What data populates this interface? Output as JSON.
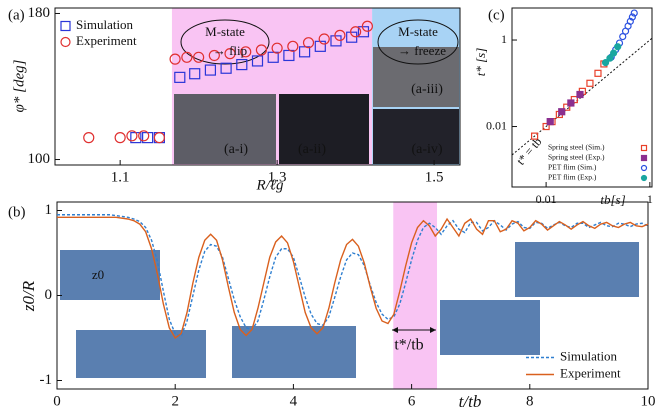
{
  "chart_data": [
    {
      "type": "scatter",
      "panel_label": "(a)",
      "x_label": "R/ℓg",
      "y_label": "φ* [deg]",
      "xlim": [
        1.017,
        1.533
      ],
      "ylim": [
        97,
        183
      ],
      "xticks": [
        1.1,
        1.3,
        1.5
      ],
      "yticks": [
        100,
        180
      ],
      "legend": "upper left",
      "spans": [
        {
          "from": 1.166,
          "to": 1.421,
          "color": "#f9c4f3"
        },
        {
          "from": 1.421,
          "to": 1.533,
          "color": "#a8d3f5"
        }
      ],
      "annotations": [
        "M-state",
        "→ flip",
        "M-state",
        "→ freeze",
        "(a-i)",
        "(a-ii)",
        "(a-iii)",
        "(a-iv)"
      ],
      "series": [
        {
          "name": "Simulation",
          "color": "#2a36d8",
          "marker": "square",
          "filled": false,
          "x": [
            1.12,
            1.135,
            1.15,
            1.176,
            1.195,
            1.215,
            1.235,
            1.255,
            1.275,
            1.295,
            1.315,
            1.335,
            1.355,
            1.375,
            1.395,
            1.41
          ],
          "values": [
            112,
            112,
            112,
            145,
            147,
            149,
            150,
            152,
            154,
            156,
            157,
            159,
            162,
            165,
            167,
            170
          ]
        },
        {
          "name": "Experiment",
          "color": "#e03030",
          "marker": "circle",
          "filled": false,
          "x": [
            1.06,
            1.1,
            1.115,
            1.13,
            1.15,
            1.17,
            1.185,
            1.2,
            1.22,
            1.24,
            1.26,
            1.28,
            1.3,
            1.32,
            1.34,
            1.36,
            1.38,
            1.4,
            1.415
          ],
          "values": [
            112,
            112,
            113,
            113,
            112,
            155,
            156,
            156,
            157,
            158,
            159,
            160,
            161,
            162,
            164,
            166,
            168,
            170,
            173
          ]
        }
      ]
    },
    {
      "type": "line",
      "panel_label": "(b)",
      "x_label": "t/tb",
      "y_label": "z0/R",
      "xlim": [
        0,
        10
      ],
      "ylim": [
        -1.1,
        1.1
      ],
      "xticks": [
        0,
        2,
        4,
        6,
        8,
        10
      ],
      "yticks": [
        -1,
        0,
        1
      ],
      "legend": "lower right",
      "spans": [
        {
          "from": 5.69,
          "to": 6.43,
          "color": "#f9c4f3"
        }
      ],
      "annotations": [
        "t*/tb",
        "z0"
      ],
      "x": [
        0,
        0.1,
        0.2,
        0.3,
        0.4,
        0.5,
        0.6,
        0.7,
        0.8,
        0.9,
        1,
        1.1,
        1.2,
        1.3,
        1.4,
        1.5,
        1.6,
        1.7,
        1.8,
        1.9,
        2,
        2.1,
        2.2,
        2.3,
        2.4,
        2.5,
        2.6,
        2.7,
        2.8,
        2.9,
        3,
        3.1,
        3.2,
        3.3,
        3.4,
        3.5,
        3.6,
        3.7,
        3.8,
        3.9,
        4,
        4.1,
        4.2,
        4.3,
        4.4,
        4.5,
        4.6,
        4.7,
        4.8,
        4.9,
        5,
        5.1,
        5.2,
        5.3,
        5.4,
        5.5,
        5.6,
        5.7,
        5.8,
        5.9,
        6,
        6.1,
        6.2,
        6.3,
        6.4,
        6.5,
        6.6,
        6.7,
        6.8,
        6.9,
        7,
        7.1,
        7.2,
        7.3,
        7.4,
        7.5,
        7.6,
        7.7,
        7.8,
        7.9,
        8,
        8.1,
        8.2,
        8.3,
        8.4,
        8.5,
        8.6,
        8.7,
        8.8,
        8.9,
        9,
        9.1,
        9.2,
        9.3,
        9.4,
        9.5,
        9.6,
        9.7,
        9.8,
        9.9,
        10
      ],
      "series": [
        {
          "name": "Simulation",
          "color": "#2f7fd0",
          "dashed": true,
          "values": [
            0.95,
            0.95,
            0.95,
            0.95,
            0.95,
            0.95,
            0.95,
            0.95,
            0.95,
            0.95,
            0.94,
            0.93,
            0.92,
            0.9,
            0.87,
            0.8,
            0.65,
            0.4,
            0.05,
            -0.28,
            -0.45,
            -0.48,
            -0.3,
            0.0,
            0.3,
            0.52,
            0.6,
            0.58,
            0.45,
            0.2,
            -0.05,
            -0.25,
            -0.38,
            -0.4,
            -0.3,
            -0.05,
            0.22,
            0.45,
            0.55,
            0.55,
            0.45,
            0.22,
            -0.02,
            -0.22,
            -0.33,
            -0.35,
            -0.25,
            -0.02,
            0.22,
            0.42,
            0.5,
            0.48,
            0.35,
            0.12,
            -0.08,
            -0.22,
            -0.28,
            -0.25,
            -0.1,
            0.15,
            0.42,
            0.65,
            0.8,
            0.85,
            0.8,
            0.72,
            0.82,
            0.88,
            0.78,
            0.74,
            0.86,
            0.86,
            0.76,
            0.8,
            0.88,
            0.83,
            0.77,
            0.84,
            0.87,
            0.8,
            0.79,
            0.86,
            0.85,
            0.79,
            0.83,
            0.86,
            0.82,
            0.8,
            0.85,
            0.85,
            0.8,
            0.83,
            0.86,
            0.82,
            0.81,
            0.85,
            0.84,
            0.81,
            0.84,
            0.85,
            0.82
          ]
        },
        {
          "name": "Experiment",
          "color": "#d9601e",
          "dashed": false,
          "values": [
            0.92,
            0.92,
            0.92,
            0.92,
            0.92,
            0.92,
            0.92,
            0.92,
            0.92,
            0.92,
            0.92,
            0.91,
            0.9,
            0.88,
            0.84,
            0.75,
            0.55,
            0.25,
            -0.1,
            -0.38,
            -0.5,
            -0.45,
            -0.2,
            0.15,
            0.45,
            0.65,
            0.72,
            0.65,
            0.42,
            0.1,
            -0.2,
            -0.4,
            -0.47,
            -0.4,
            -0.15,
            0.15,
            0.45,
            0.63,
            0.7,
            0.62,
            0.4,
            0.1,
            -0.2,
            -0.38,
            -0.45,
            -0.38,
            -0.15,
            0.15,
            0.42,
            0.6,
            0.66,
            0.58,
            0.38,
            0.1,
            -0.15,
            -0.3,
            -0.33,
            -0.22,
            0.05,
            0.35,
            0.62,
            0.8,
            0.88,
            0.82,
            0.7,
            0.78,
            0.9,
            0.8,
            0.7,
            0.85,
            0.9,
            0.78,
            0.72,
            0.88,
            0.88,
            0.75,
            0.78,
            0.88,
            0.85,
            0.76,
            0.8,
            0.88,
            0.84,
            0.77,
            0.82,
            0.87,
            0.83,
            0.78,
            0.83,
            0.87,
            0.82,
            0.79,
            0.84,
            0.86,
            0.82,
            0.8,
            0.84,
            0.86,
            0.82,
            0.81,
            0.84
          ]
        }
      ]
    },
    {
      "type": "scatter",
      "panel_label": "(c)",
      "x_label": "tb[s]",
      "y_label": "t* [s]",
      "log_x": true,
      "log_y": true,
      "identity_line": true,
      "xlim": [
        0.0022,
        1.1
      ],
      "ylim": [
        0.0004,
        5.5
      ],
      "xticks": [
        0.01,
        1
      ],
      "yticks": [
        0.01,
        1
      ],
      "legend": "lower right",
      "annotations": [
        "t* = tb"
      ],
      "series": [
        {
          "name": "Spring steel (Sim.)",
          "color": "#e8402a",
          "marker": "square",
          "filled": false,
          "x": [
            0.006,
            0.01,
            0.013,
            0.018,
            0.025,
            0.035,
            0.05,
            0.07,
            0.1,
            0.13
          ],
          "values": [
            0.006,
            0.01,
            0.013,
            0.019,
            0.028,
            0.042,
            0.065,
            0.1,
            0.17,
            0.28
          ]
        },
        {
          "name": "Spring steel (Exp.)",
          "color": "#8b2f8f",
          "marker": "square",
          "filled": true,
          "x": [
            0.012,
            0.02,
            0.03,
            0.045
          ],
          "values": [
            0.013,
            0.022,
            0.035,
            0.055
          ]
        },
        {
          "name": "PET flim (Sim.)",
          "color": "#2a50e0",
          "marker": "circle",
          "filled": false,
          "x": [
            0.18,
            0.22,
            0.26,
            0.3,
            0.34,
            0.38,
            0.42,
            0.46,
            0.5
          ],
          "values": [
            0.4,
            0.6,
            0.85,
            1.2,
            1.6,
            2.1,
            2.7,
            3.4,
            4.2
          ]
        },
        {
          "name": "PET flim (Exp.)",
          "color": "#1aa6a0",
          "marker": "circle",
          "filled": true,
          "x": [
            0.14,
            0.17,
            0.2,
            0.24
          ],
          "values": [
            0.3,
            0.38,
            0.5,
            0.7
          ]
        }
      ]
    }
  ]
}
